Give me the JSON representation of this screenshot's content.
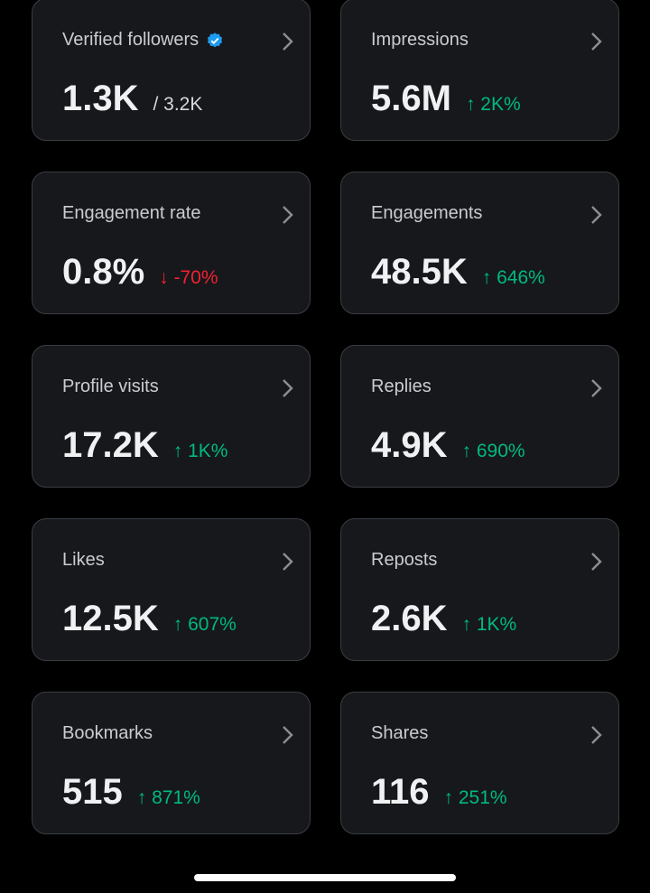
{
  "cards": [
    {
      "label": "Verified followers",
      "verified": true,
      "value": "1.3K",
      "total": "/ 3.2K"
    },
    {
      "label": "Impressions",
      "value": "5.6M",
      "change": "↑ 2K%",
      "color": "#00ba7c"
    },
    {
      "label": "Engagement rate",
      "value": "0.8%",
      "change": "↓ -70%",
      "color": "#f4212e"
    },
    {
      "label": "Engagements",
      "value": "48.5K",
      "change": "↑ 646%",
      "color": "#00ba7c"
    },
    {
      "label": "Profile visits",
      "value": "17.2K",
      "change": "↑ 1K%",
      "color": "#00ba7c"
    },
    {
      "label": "Replies",
      "value": "4.9K",
      "change": "↑ 690%",
      "color": "#00ba7c"
    },
    {
      "label": "Likes",
      "value": "12.5K",
      "change": "↑ 607%",
      "color": "#00ba7c"
    },
    {
      "label": "Reposts",
      "value": "2.6K",
      "change": "↑ 1K%",
      "color": "#00ba7c"
    },
    {
      "label": "Bookmarks",
      "value": "515",
      "change": "↑ 871%",
      "color": "#00ba7c"
    },
    {
      "label": "Shares",
      "value": "116",
      "change": "↑ 251%",
      "color": "#00ba7c"
    }
  ]
}
